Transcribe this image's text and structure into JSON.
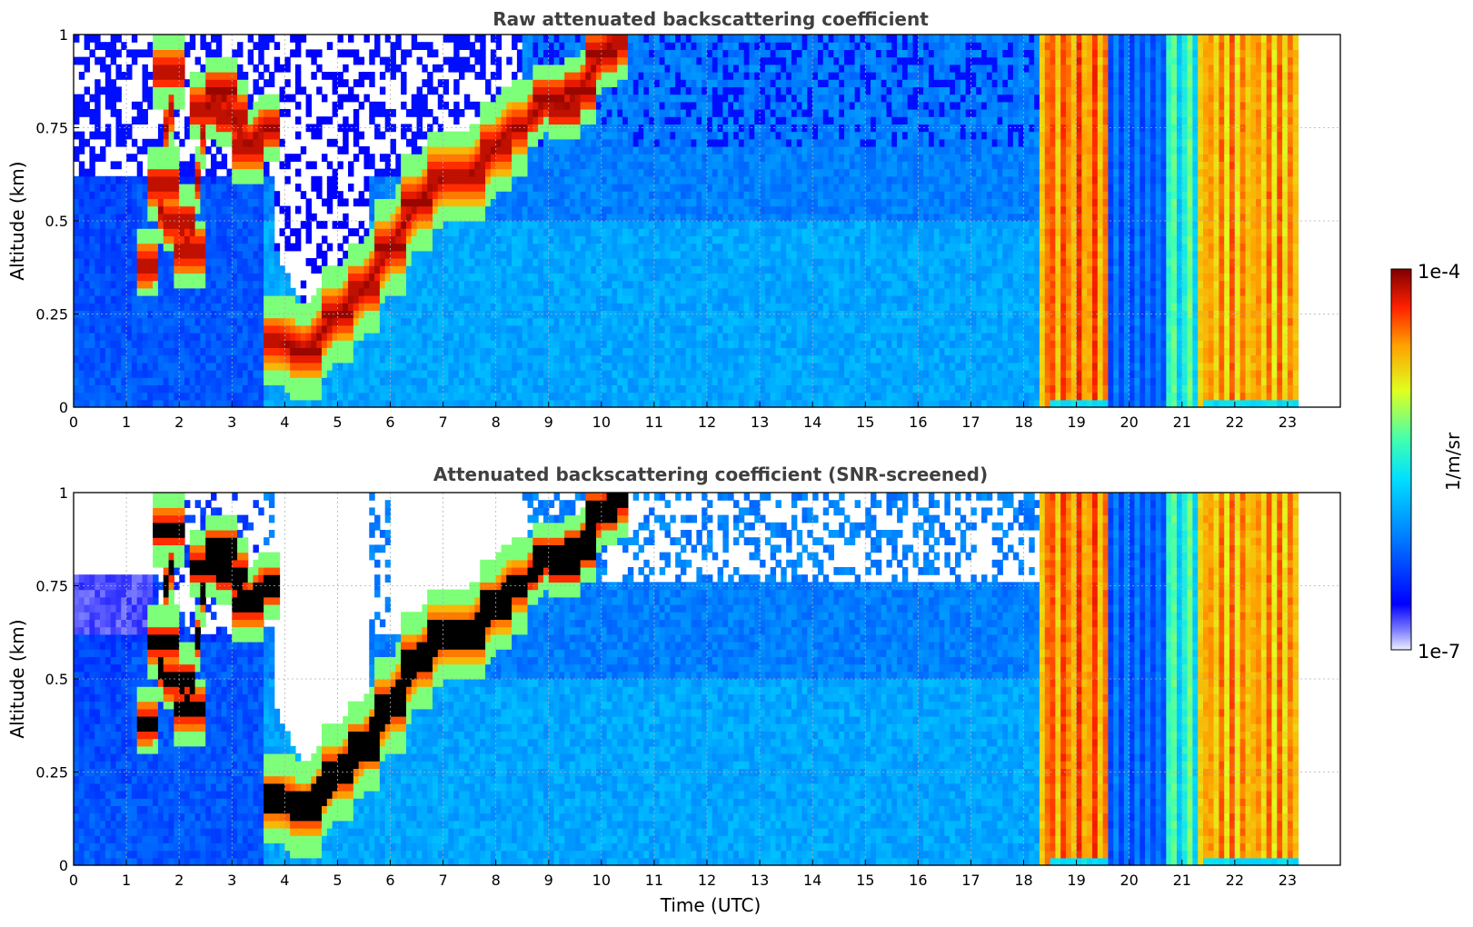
{
  "chart_data": [
    {
      "type": "heatmap",
      "title": "Raw attenuated backscattering coefficient",
      "xlabel": "",
      "ylabel": "Altitude (km)",
      "xlim": [
        0,
        24
      ],
      "ylim": [
        0,
        1
      ],
      "x_ticks": [
        "0",
        "1",
        "2",
        "3",
        "4",
        "5",
        "6",
        "7",
        "8",
        "9",
        "10",
        "11",
        "12",
        "13",
        "14",
        "15",
        "16",
        "17",
        "18",
        "19",
        "20",
        "21",
        "22",
        "23"
      ],
      "y_ticks": [
        "0",
        "0.25",
        "0.5",
        "0.75",
        "1"
      ],
      "grid": true,
      "screened": false,
      "regions": [
        {
          "kind": "band",
          "x0": 0,
          "x1": 18.3,
          "y0": 0,
          "y1": 0.3,
          "level": 0.22
        },
        {
          "kind": "band",
          "x0": 3.6,
          "x1": 18.3,
          "y0": 0,
          "y1": 0.55,
          "level": 0.32
        },
        {
          "kind": "band",
          "x0": 5.5,
          "x1": 18.3,
          "y0": 0.55,
          "y1": 1.0,
          "level": 0.25
        },
        {
          "kind": "cloud",
          "points": [
            [
              1.55,
              0.38
            ],
            [
              1.7,
              0.6
            ],
            [
              1.8,
              0.9
            ],
            [
              2.0,
              0.5
            ],
            [
              2.2,
              0.42
            ],
            [
              2.5,
              0.8
            ],
            [
              2.8,
              0.85
            ],
            [
              3.0,
              0.78
            ],
            [
              3.3,
              0.7
            ],
            [
              3.6,
              0.75
            ]
          ],
          "thickness": 0.05
        },
        {
          "kind": "cloud",
          "points": [
            [
              3.9,
              0.18
            ],
            [
              4.4,
              0.15
            ],
            [
              5.0,
              0.25
            ],
            [
              5.5,
              0.32
            ],
            [
              6.0,
              0.43
            ],
            [
              6.5,
              0.55
            ],
            [
              7.0,
              0.62
            ],
            [
              7.5,
              0.62
            ],
            [
              8.0,
              0.7
            ],
            [
              8.3,
              0.75
            ]
          ],
          "thickness": 0.07
        },
        {
          "kind": "cloud",
          "points": [
            [
              8.7,
              0.78
            ],
            [
              9.0,
              0.83
            ],
            [
              9.3,
              0.8
            ],
            [
              9.6,
              0.85
            ],
            [
              10.0,
              0.95
            ],
            [
              10.2,
              0.98
            ]
          ],
          "thickness": 0.05
        },
        {
          "kind": "precip_stripes",
          "x0": 18.3,
          "x1": 23.2
        }
      ],
      "notes_visible": []
    },
    {
      "type": "heatmap",
      "title": "Attenuated backscattering coefficient (SNR-screened)",
      "xlabel": "Time (UTC)",
      "ylabel": "Altitude (km)",
      "xlim": [
        0,
        24
      ],
      "ylim": [
        0,
        1
      ],
      "x_ticks": [
        "0",
        "1",
        "2",
        "3",
        "4",
        "5",
        "6",
        "7",
        "8",
        "9",
        "10",
        "11",
        "12",
        "13",
        "14",
        "15",
        "16",
        "17",
        "18",
        "19",
        "20",
        "21",
        "22",
        "23"
      ],
      "y_ticks": [
        "0",
        "0.25",
        "0.5",
        "0.75",
        "1"
      ],
      "grid": true,
      "screened": true
    }
  ],
  "colorbar": {
    "label": "1/m/sr",
    "max_label": "1e-4",
    "min_label": "1e-7",
    "colormap": "jet"
  },
  "colors": {
    "axis": "#000000",
    "title": "#404040",
    "grid": "#b0b0b0"
  }
}
